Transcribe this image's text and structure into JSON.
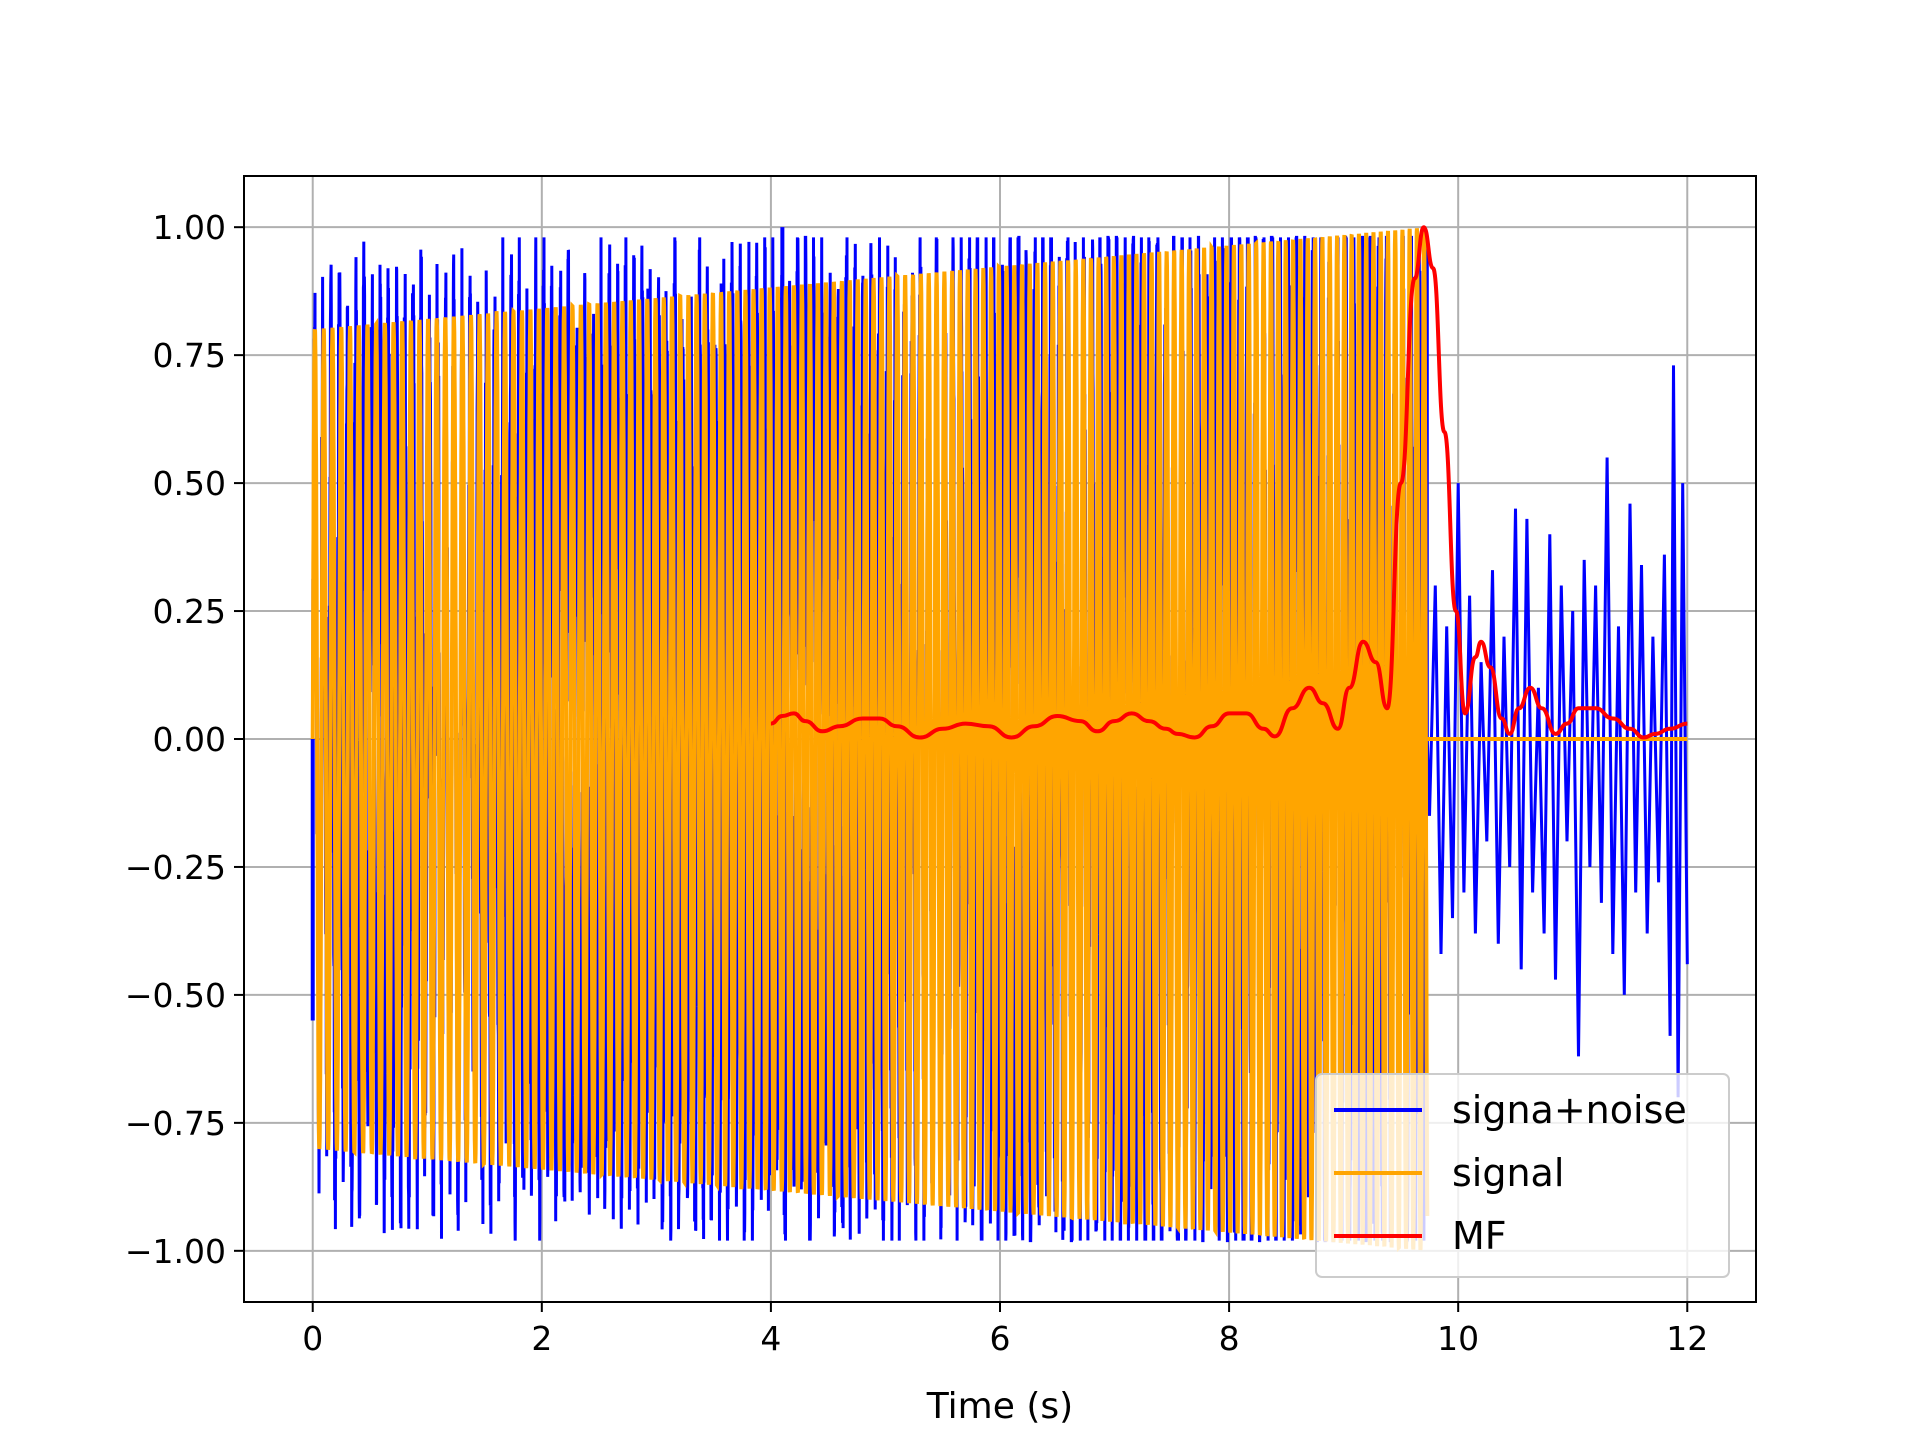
{
  "chart_data": {
    "type": "line",
    "title": "",
    "xlabel": "Time (s)",
    "ylabel": "",
    "xlim": [
      -0.6,
      12.6
    ],
    "ylim": [
      -1.1,
      1.1
    ],
    "xticks": [
      0,
      2,
      4,
      6,
      8,
      10,
      12
    ],
    "xtick_labels": [
      "0",
      "2",
      "4",
      "6",
      "8",
      "10",
      "12"
    ],
    "yticks": [
      1.0,
      0.75,
      0.5,
      0.25,
      0.0,
      -0.25,
      -0.5,
      -0.75,
      -1.0
    ],
    "ytick_labels": [
      "1.00",
      "0.75",
      "0.50",
      "0.25",
      "0.00",
      "−0.25",
      "−0.50",
      "−0.75",
      "−1.00"
    ],
    "grid": true,
    "legend_position": "lower-right",
    "series": [
      {
        "name": "signa+noise",
        "color": "#0000ff",
        "description_points": [
          [
            9.73,
            0.0
          ],
          [
            9.75,
            -0.15
          ],
          [
            9.8,
            0.3
          ],
          [
            9.85,
            -0.42
          ],
          [
            9.9,
            0.22
          ],
          [
            9.95,
            -0.35
          ],
          [
            10.0,
            0.5
          ],
          [
            10.05,
            -0.3
          ],
          [
            10.1,
            0.28
          ],
          [
            10.15,
            -0.38
          ],
          [
            10.2,
            0.15
          ],
          [
            10.25,
            -0.2
          ],
          [
            10.3,
            0.33
          ],
          [
            10.35,
            -0.4
          ],
          [
            10.4,
            0.2
          ],
          [
            10.45,
            -0.25
          ],
          [
            10.5,
            0.45
          ],
          [
            10.55,
            -0.45
          ],
          [
            10.6,
            0.43
          ],
          [
            10.65,
            -0.3
          ],
          [
            10.7,
            0.1
          ],
          [
            10.75,
            -0.38
          ],
          [
            10.8,
            0.4
          ],
          [
            10.85,
            -0.47
          ],
          [
            10.9,
            0.3
          ],
          [
            10.95,
            -0.2
          ],
          [
            11.0,
            0.25
          ],
          [
            11.05,
            -0.62
          ],
          [
            11.1,
            0.35
          ],
          [
            11.15,
            -0.25
          ],
          [
            11.2,
            0.3
          ],
          [
            11.25,
            -0.32
          ],
          [
            11.3,
            0.55
          ],
          [
            11.35,
            -0.42
          ],
          [
            11.4,
            0.22
          ],
          [
            11.45,
            -0.5
          ],
          [
            11.5,
            0.46
          ],
          [
            11.55,
            -0.3
          ],
          [
            11.6,
            0.34
          ],
          [
            11.65,
            -0.38
          ],
          [
            11.7,
            0.2
          ],
          [
            11.75,
            -0.28
          ],
          [
            11.8,
            0.36
          ],
          [
            11.85,
            -0.58
          ],
          [
            11.88,
            0.73
          ],
          [
            11.92,
            -0.7
          ],
          [
            11.96,
            0.5
          ],
          [
            12.0,
            -0.44
          ]
        ],
        "visible_spikes": [
          [
            2.93,
            0.88
          ],
          [
            3.57,
            0.89
          ],
          [
            4.1,
            1.0
          ],
          [
            4.12,
            -0.93
          ],
          [
            0.0,
            -0.55
          ]
        ]
      },
      {
        "name": "signal",
        "color": "#ffa500",
        "envelope": {
          "t_start": 0.0,
          "t_end": 9.73,
          "amp_start": 0.8,
          "amp_end": 1.0
        },
        "after_end_value": 0.0
      },
      {
        "name": "MF",
        "color": "#ff0000",
        "points": [
          [
            4.0,
            0.03
          ],
          [
            4.1,
            0.045
          ],
          [
            4.2,
            0.05
          ],
          [
            4.3,
            0.035
          ],
          [
            4.45,
            0.015
          ],
          [
            4.6,
            0.025
          ],
          [
            4.8,
            0.04
          ],
          [
            4.95,
            0.04
          ],
          [
            5.1,
            0.025
          ],
          [
            5.3,
            0.003
          ],
          [
            5.5,
            0.02
          ],
          [
            5.7,
            0.03
          ],
          [
            5.9,
            0.025
          ],
          [
            6.1,
            0.003
          ],
          [
            6.3,
            0.025
          ],
          [
            6.5,
            0.045
          ],
          [
            6.7,
            0.035
          ],
          [
            6.85,
            0.015
          ],
          [
            7.0,
            0.035
          ],
          [
            7.15,
            0.05
          ],
          [
            7.3,
            0.035
          ],
          [
            7.45,
            0.02
          ],
          [
            7.55,
            0.01
          ],
          [
            7.7,
            0.003
          ],
          [
            7.85,
            0.025
          ],
          [
            8.0,
            0.05
          ],
          [
            8.15,
            0.05
          ],
          [
            8.3,
            0.02
          ],
          [
            8.4,
            0.005
          ],
          [
            8.55,
            0.06
          ],
          [
            8.7,
            0.1
          ],
          [
            8.82,
            0.07
          ],
          [
            8.95,
            0.02
          ],
          [
            9.05,
            0.1
          ],
          [
            9.17,
            0.19
          ],
          [
            9.28,
            0.15
          ],
          [
            9.38,
            0.06
          ],
          [
            9.5,
            0.5
          ],
          [
            9.62,
            0.9
          ],
          [
            9.7,
            1.0
          ],
          [
            9.78,
            0.92
          ],
          [
            9.88,
            0.6
          ],
          [
            9.98,
            0.25
          ],
          [
            10.06,
            0.05
          ],
          [
            10.15,
            0.16
          ],
          [
            10.2,
            0.19
          ],
          [
            10.28,
            0.14
          ],
          [
            10.38,
            0.04
          ],
          [
            10.45,
            0.01
          ],
          [
            10.53,
            0.06
          ],
          [
            10.63,
            0.1
          ],
          [
            10.73,
            0.06
          ],
          [
            10.85,
            0.01
          ],
          [
            10.95,
            0.03
          ],
          [
            11.05,
            0.06
          ],
          [
            11.2,
            0.06
          ],
          [
            11.35,
            0.04
          ],
          [
            11.5,
            0.02
          ],
          [
            11.62,
            0.003
          ],
          [
            11.72,
            0.01
          ],
          [
            11.85,
            0.02
          ],
          [
            12.0,
            0.03
          ]
        ]
      }
    ]
  },
  "legend": {
    "items": [
      {
        "label": "signa+noise",
        "color": "#0000ff"
      },
      {
        "label": "signal",
        "color": "#ffa500"
      },
      {
        "label": "MF",
        "color": "#ff0000"
      }
    ]
  }
}
